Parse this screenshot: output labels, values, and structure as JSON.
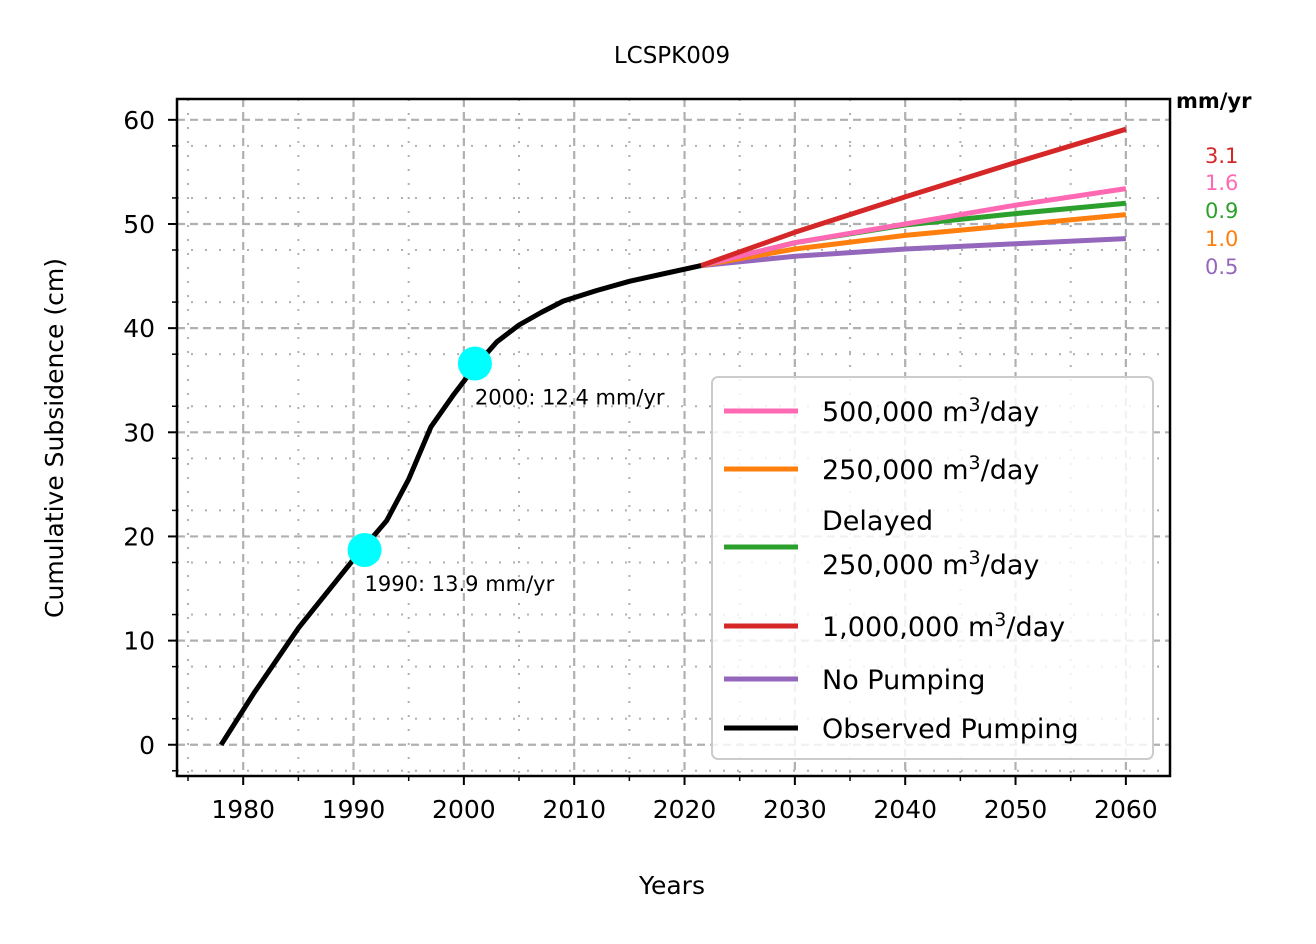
{
  "chart_data": {
    "type": "line",
    "title": "LCSPK009",
    "xlabel": "Years",
    "ylabel": "Cumulative Subsidence (cm)",
    "xlim": [
      1974,
      2064
    ],
    "ylim": [
      -3,
      62
    ],
    "xticks": [
      1980,
      1990,
      2000,
      2010,
      2020,
      2030,
      2040,
      2050,
      2060
    ],
    "yticks": [
      0,
      10,
      20,
      30,
      40,
      50,
      60
    ],
    "grid": true,
    "legend_position": "lower right",
    "series": [
      {
        "name": "500,000 m³/day",
        "color": "#ff69b4",
        "points": [
          [
            2021.5,
            46
          ],
          [
            2030,
            48.2
          ],
          [
            2040,
            50
          ],
          [
            2050,
            51.8
          ],
          [
            2060,
            53.4
          ]
        ]
      },
      {
        "name": "250,000 m³/day",
        "color": "#ff7f0e",
        "points": [
          [
            2021.5,
            46
          ],
          [
            2030,
            47.6
          ],
          [
            2040,
            48.9
          ],
          [
            2050,
            49.9
          ],
          [
            2060,
            50.9
          ]
        ]
      },
      {
        "name": "Delayed 250,000 m³/day",
        "color": "#2ca02c",
        "points": [
          [
            2021.5,
            46
          ],
          [
            2030,
            48.2
          ],
          [
            2040,
            49.9
          ],
          [
            2050,
            51
          ],
          [
            2060,
            52
          ]
        ]
      },
      {
        "name": "1,000,000 m³/day",
        "color": "#d62728",
        "points": [
          [
            2021.5,
            46
          ],
          [
            2030,
            49.2
          ],
          [
            2040,
            52.6
          ],
          [
            2050,
            55.9
          ],
          [
            2060,
            59.1
          ]
        ]
      },
      {
        "name": "No Pumping",
        "color": "#9467bd",
        "points": [
          [
            2021.5,
            46
          ],
          [
            2030,
            46.9
          ],
          [
            2040,
            47.6
          ],
          [
            2050,
            48.1
          ],
          [
            2060,
            48.6
          ]
        ]
      },
      {
        "name": "Observed Pumping",
        "color": "#000000",
        "points": [
          [
            1978,
            0
          ],
          [
            1981,
            5
          ],
          [
            1985,
            11.2
          ],
          [
            1990,
            17.8
          ],
          [
            1993,
            21.5
          ],
          [
            1995,
            25.5
          ],
          [
            1997,
            30.5
          ],
          [
            1999,
            33.5
          ],
          [
            2001,
            36.3
          ],
          [
            2003,
            38.7
          ],
          [
            2005,
            40.3
          ],
          [
            2007,
            41.5
          ],
          [
            2009,
            42.6
          ],
          [
            2012,
            43.6
          ],
          [
            2015,
            44.5
          ],
          [
            2018,
            45.2
          ],
          [
            2021.5,
            46
          ]
        ]
      }
    ],
    "points": [
      {
        "x": 1991,
        "y": 18.7,
        "color": "#00ffff",
        "label": "1990: 13.9 mm/yr"
      },
      {
        "x": 2001,
        "y": 36.6,
        "color": "#00ffff",
        "label": "2000: 12.4 mm/yr"
      }
    ],
    "rates_header": "mm/yr",
    "rates": [
      {
        "value": "3.1",
        "color": "#d62728"
      },
      {
        "value": "1.6",
        "color": "#ff69b4"
      },
      {
        "value": "0.9",
        "color": "#2ca02c"
      },
      {
        "value": "1.0",
        "color": "#ff7f0e"
      },
      {
        "value": "0.5",
        "color": "#9467bd"
      }
    ]
  }
}
